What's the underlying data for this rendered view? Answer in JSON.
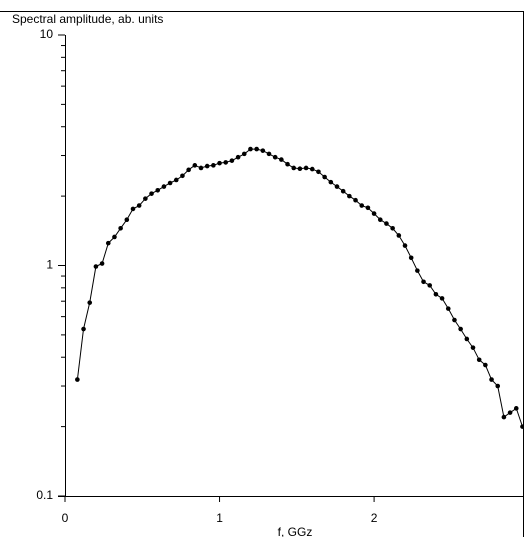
{
  "chart_data": {
    "type": "line",
    "title": "Spectral amplitude, ab. units",
    "x_label": "f, GGz",
    "x": [
      0.08,
      0.12,
      0.16,
      0.2,
      0.24,
      0.28,
      0.32,
      0.36,
      0.4,
      0.44,
      0.48,
      0.52,
      0.56,
      0.6,
      0.64,
      0.68,
      0.72,
      0.76,
      0.8,
      0.84,
      0.88,
      0.92,
      0.96,
      1.0,
      1.04,
      1.08,
      1.12,
      1.16,
      1.2,
      1.24,
      1.28,
      1.32,
      1.36,
      1.4,
      1.44,
      1.48,
      1.52,
      1.56,
      1.6,
      1.64,
      1.68,
      1.72,
      1.76,
      1.8,
      1.84,
      1.88,
      1.92,
      1.96,
      2.0,
      2.04,
      2.08,
      2.12,
      2.16,
      2.2,
      2.24,
      2.28,
      2.32,
      2.36,
      2.4,
      2.44,
      2.48,
      2.52,
      2.56,
      2.6,
      2.64,
      2.68,
      2.72,
      2.76,
      2.8,
      2.84,
      2.88,
      2.92,
      2.96
    ],
    "series": [
      {
        "color": "#000000",
        "values": [
          0.32,
          0.53,
          0.69,
          0.99,
          1.02,
          1.25,
          1.33,
          1.45,
          1.58,
          1.76,
          1.82,
          1.95,
          2.05,
          2.12,
          2.2,
          2.28,
          2.35,
          2.45,
          2.6,
          2.72,
          2.65,
          2.7,
          2.72,
          2.78,
          2.8,
          2.85,
          2.95,
          3.05,
          3.2,
          3.2,
          3.15,
          3.05,
          2.95,
          2.88,
          2.75,
          2.65,
          2.63,
          2.65,
          2.62,
          2.55,
          2.42,
          2.3,
          2.2,
          2.1,
          2.0,
          1.92,
          1.82,
          1.78,
          1.68,
          1.58,
          1.52,
          1.45,
          1.35,
          1.22,
          1.08,
          0.95,
          0.85,
          0.82,
          0.75,
          0.72,
          0.65,
          0.58,
          0.53,
          0.48,
          0.44,
          0.39,
          0.37,
          0.32,
          0.3,
          0.22,
          0.23,
          0.24,
          0.2
        ]
      }
    ],
    "xlim": [
      0,
      2.97
    ],
    "xticks": [
      0,
      1,
      2
    ],
    "ylim": [
      0.1,
      10
    ],
    "yticks": [
      0.1,
      1,
      10
    ],
    "y_scale": "log",
    "markers": true
  }
}
